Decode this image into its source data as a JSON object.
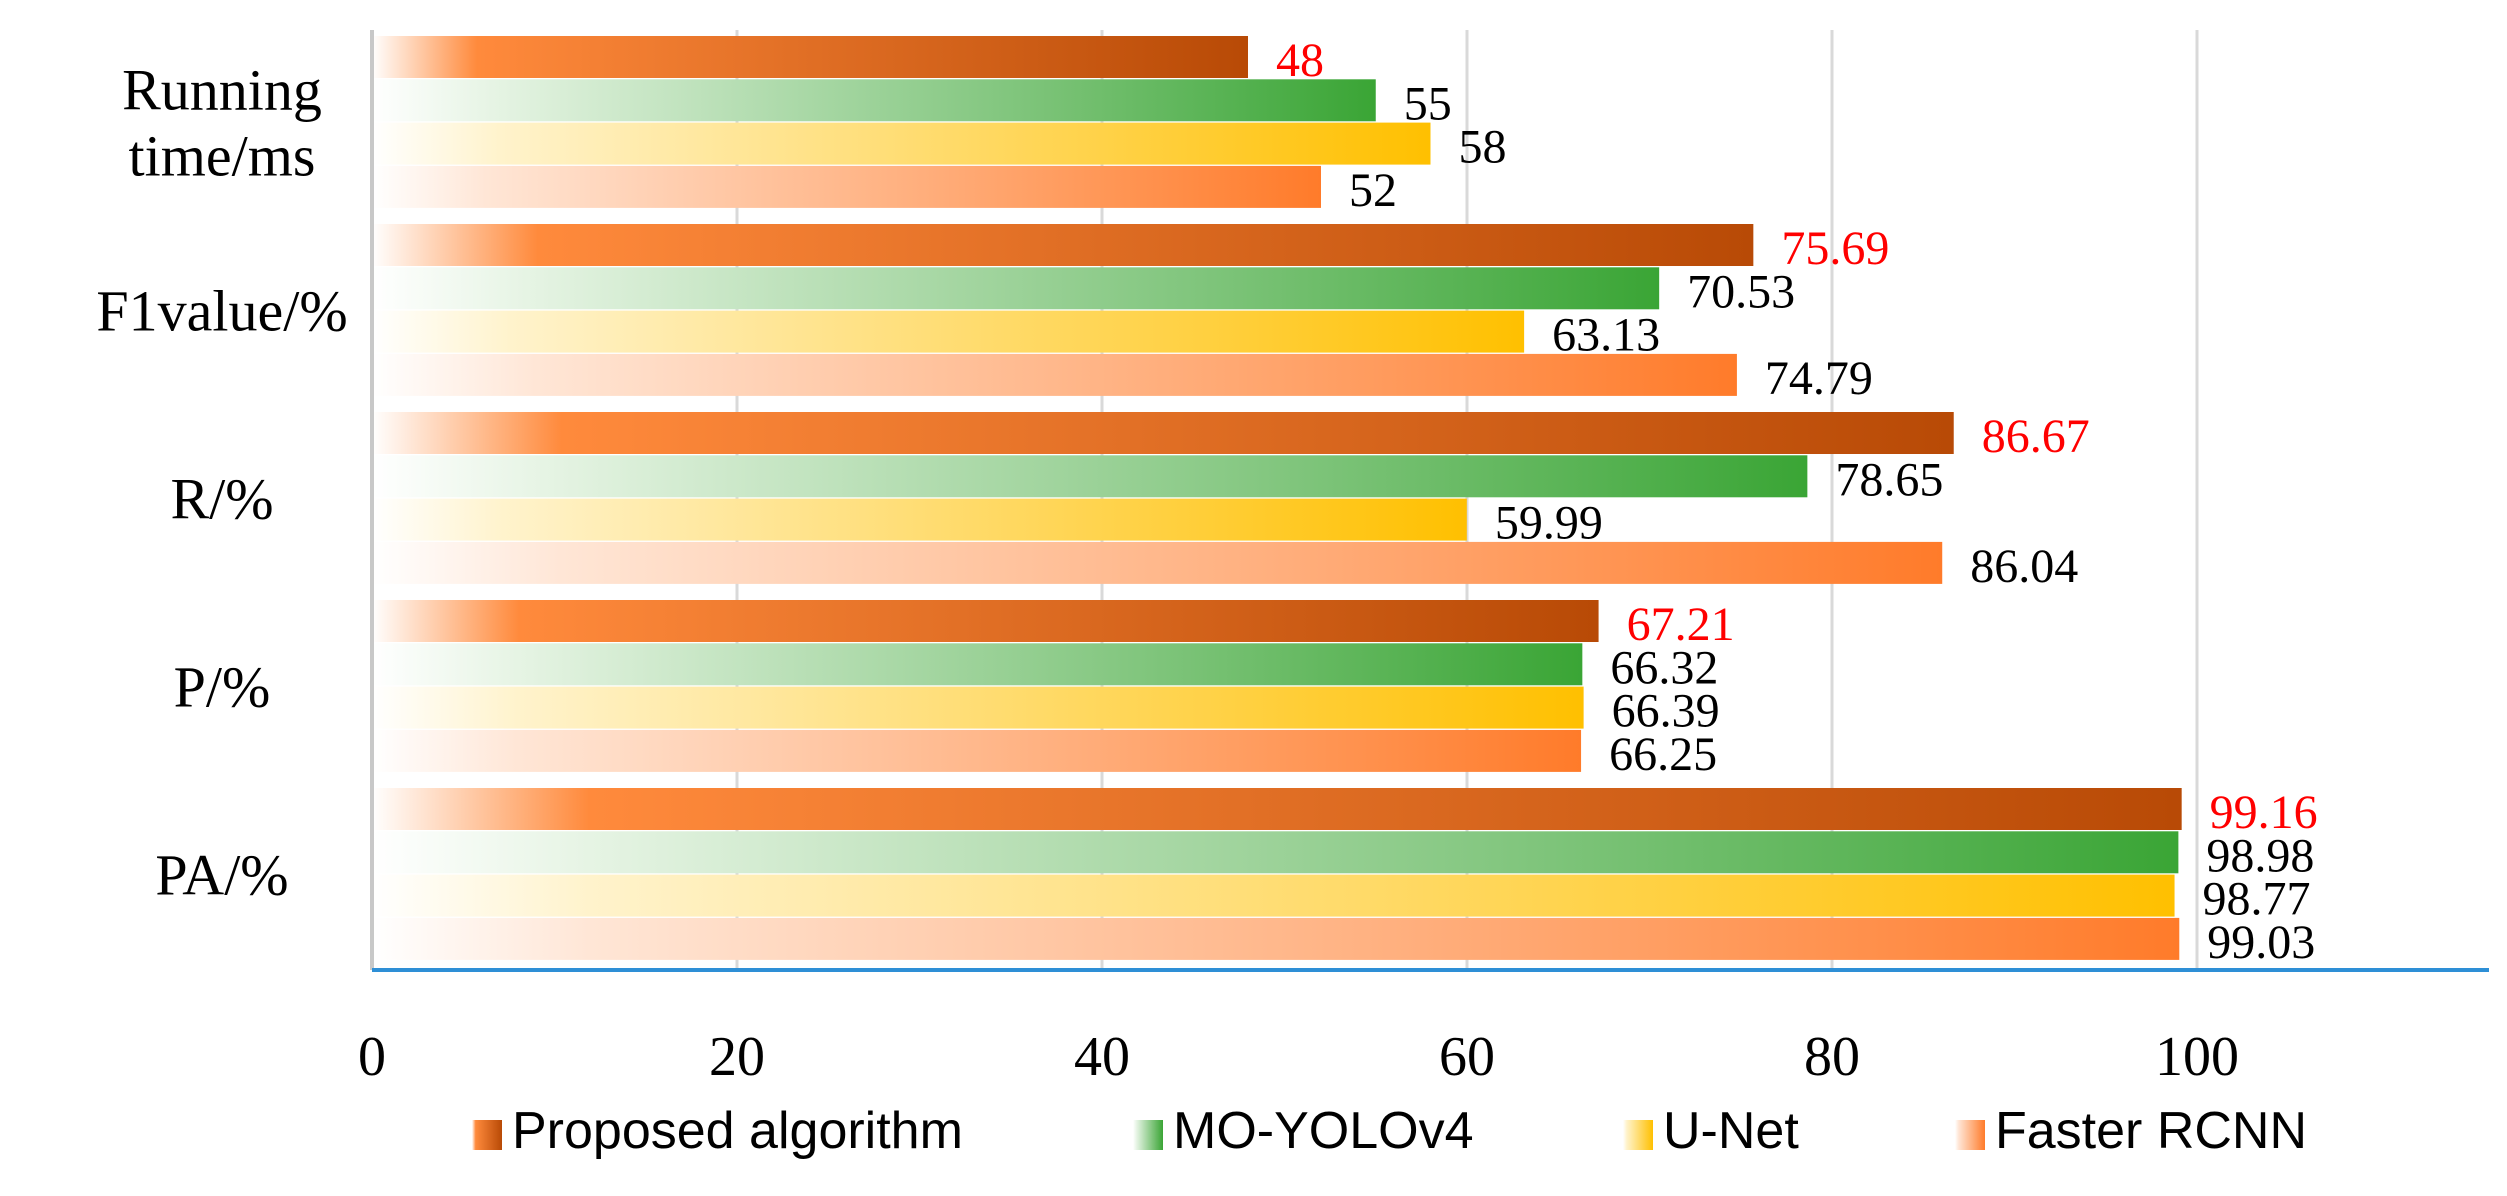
{
  "chart_data": {
    "type": "bar",
    "orientation": "horizontal",
    "categories": [
      "Running time/ms",
      "F1value/%",
      "R/%",
      "P/%",
      "PA/%"
    ],
    "category_lines": [
      [
        "Running",
        "time/ms"
      ],
      [
        "F1value/%"
      ],
      [
        "R/%"
      ],
      [
        "P/%"
      ],
      [
        "PA/%"
      ]
    ],
    "series": [
      {
        "name": "Proposed algorithm",
        "values": [
          48,
          75.69,
          86.67,
          67.21,
          99.16
        ],
        "labels": [
          "48",
          "75.69",
          "86.67",
          "67.21",
          "99.16"
        ],
        "color": "#b84a06",
        "fade_color": "#ff8a3c",
        "label_color": "#ff0000"
      },
      {
        "name": "MO-YOLOv4",
        "values": [
          55,
          70.53,
          78.65,
          66.32,
          98.98
        ],
        "labels": [
          "55",
          "70.53",
          "78.65",
          "66.32",
          "98.98"
        ],
        "color": "#3aa535",
        "fade_color": "#e6f4e4",
        "label_color": "#000000"
      },
      {
        "name": "U-Net",
        "values": [
          58,
          63.13,
          59.99,
          66.39,
          98.77
        ],
        "labels": [
          "58",
          "63.13",
          "59.99",
          "66.39",
          "98.77"
        ],
        "color": "#ffc000",
        "fade_color": "#fff3cc",
        "label_color": "#000000"
      },
      {
        "name": "Faster RCNN",
        "values": [
          52,
          74.79,
          86.04,
          66.25,
          99.03
        ],
        "labels": [
          "52",
          "74.79",
          "86.04",
          "66.25",
          "99.03"
        ],
        "color": "#ff7b2a",
        "fade_color": "#ffe6d6",
        "label_color": "#000000"
      }
    ],
    "x_ticks": [
      "0",
      "20",
      "40",
      "60",
      "80",
      "100"
    ],
    "xlim": [
      0,
      116
    ],
    "grid": true,
    "legend_position": "bottom",
    "title": "",
    "xlabel": "",
    "ylabel": ""
  }
}
